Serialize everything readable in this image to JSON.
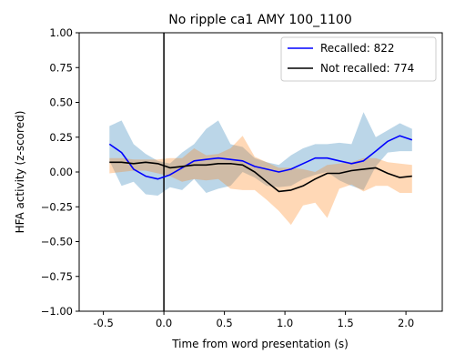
{
  "chart_data": {
    "type": "line",
    "title": "No ripple ca1 AMY 100_1100",
    "xlabel": "Time from word presentation (s)",
    "ylabel": "HFA activity (z-scored)",
    "xlim": [
      -0.7,
      2.3
    ],
    "ylim": [
      -1.0,
      1.0
    ],
    "xticks": [
      -0.5,
      0.0,
      0.5,
      1.0,
      1.5,
      2.0
    ],
    "xtick_labels": [
      "-0.5",
      "0.0",
      "0.5",
      "1.0",
      "1.5",
      "2.0"
    ],
    "yticks": [
      -1.0,
      -0.75,
      -0.5,
      -0.25,
      0.0,
      0.25,
      0.5,
      0.75,
      1.0
    ],
    "ytick_labels": [
      "−1.00",
      "−0.75",
      "−0.50",
      "−0.25",
      "0.00",
      "0.25",
      "0.50",
      "0.75",
      "1.00"
    ],
    "grid": false,
    "legend_position": "top-right",
    "vline_x": 0.0,
    "x": [
      -0.45,
      -0.35,
      -0.25,
      -0.15,
      -0.05,
      0.05,
      0.15,
      0.25,
      0.35,
      0.45,
      0.55,
      0.65,
      0.75,
      0.85,
      0.95,
      1.05,
      1.15,
      1.25,
      1.35,
      1.45,
      1.55,
      1.65,
      1.75,
      1.85,
      1.95,
      2.05
    ],
    "series": [
      {
        "name": "Recalled: 822",
        "color": "#0000ff",
        "band_color": "#1f77b4",
        "values": [
          0.2,
          0.14,
          0.02,
          -0.03,
          -0.05,
          -0.02,
          0.03,
          0.08,
          0.09,
          0.1,
          0.09,
          0.08,
          0.04,
          0.02,
          0.0,
          0.02,
          0.06,
          0.1,
          0.1,
          0.08,
          0.06,
          0.08,
          0.15,
          0.22,
          0.26,
          0.23
        ],
        "upper": [
          0.33,
          0.37,
          0.2,
          0.13,
          0.08,
          0.06,
          0.14,
          0.2,
          0.31,
          0.37,
          0.2,
          0.18,
          0.1,
          0.07,
          0.05,
          0.12,
          0.17,
          0.2,
          0.2,
          0.21,
          0.2,
          0.43,
          0.25,
          0.3,
          0.35,
          0.31
        ],
        "lower": [
          0.08,
          -0.1,
          -0.07,
          -0.16,
          -0.17,
          -0.11,
          -0.13,
          -0.05,
          -0.15,
          -0.12,
          -0.1,
          0.0,
          -0.04,
          -0.1,
          -0.11,
          -0.1,
          -0.05,
          -0.02,
          0.0,
          -0.06,
          -0.1,
          -0.13,
          0.04,
          0.14,
          0.15,
          0.15
        ]
      },
      {
        "name": "Not recalled: 774",
        "color": "#000000",
        "band_color": "#ff7f0e",
        "values": [
          0.07,
          0.07,
          0.06,
          0.07,
          0.06,
          0.03,
          0.04,
          0.05,
          0.05,
          0.06,
          0.06,
          0.05,
          0.0,
          -0.07,
          -0.14,
          -0.13,
          -0.1,
          -0.05,
          -0.01,
          -0.01,
          0.01,
          0.02,
          0.03,
          -0.01,
          -0.04,
          -0.03
        ],
        "upper": [
          0.1,
          0.1,
          0.09,
          0.09,
          0.09,
          0.1,
          0.1,
          0.17,
          0.12,
          0.13,
          0.17,
          0.26,
          0.11,
          0.07,
          0.03,
          0.03,
          0.02,
          0.0,
          0.05,
          0.06,
          0.07,
          0.1,
          0.1,
          0.07,
          0.06,
          0.05
        ],
        "lower": [
          -0.01,
          0.0,
          0.01,
          0.01,
          -0.01,
          -0.03,
          -0.07,
          -0.05,
          -0.06,
          -0.05,
          -0.12,
          -0.13,
          -0.13,
          -0.2,
          -0.28,
          -0.38,
          -0.24,
          -0.22,
          -0.33,
          -0.12,
          -0.09,
          -0.14,
          -0.1,
          -0.1,
          -0.15,
          -0.15
        ]
      }
    ]
  }
}
